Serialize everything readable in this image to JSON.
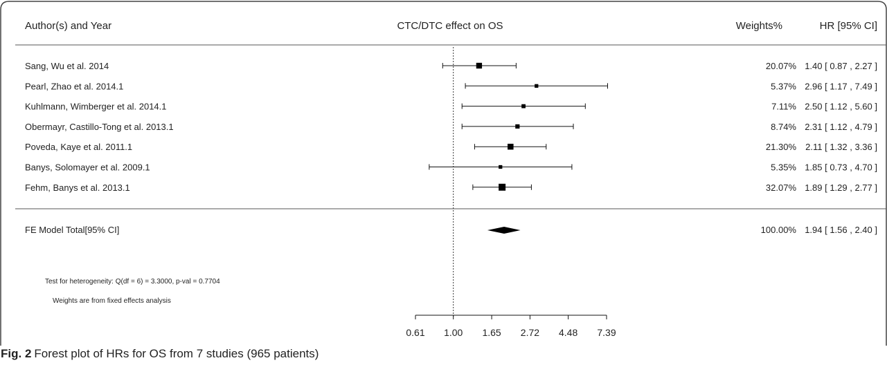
{
  "chart_data": {
    "type": "forest",
    "title": "CTC/DTC effect on OS",
    "columns": {
      "study": "Author(s) and Year",
      "weight": "Weights%",
      "estimate": "HR [95% CI]"
    },
    "studies": [
      {
        "label": "Sang, Wu et al. 2014",
        "weight": "20.07%",
        "hr_text": "1.40 [ 0.87 , 2.27 ]",
        "hr": 1.4,
        "lo": 0.87,
        "hi": 2.27,
        "w": 20.07
      },
      {
        "label": "Pearl, Zhao et al. 2014.1",
        "weight": "5.37%",
        "hr_text": "2.96 [ 1.17 , 7.49 ]",
        "hr": 2.96,
        "lo": 1.17,
        "hi": 7.49,
        "w": 5.37
      },
      {
        "label": "Kuhlmann, Wimberger et al. 2014.1",
        "weight": "7.11%",
        "hr_text": "2.50 [ 1.12 , 5.60 ]",
        "hr": 2.5,
        "lo": 1.12,
        "hi": 5.6,
        "w": 7.11
      },
      {
        "label": "Obermayr, Castillo-Tong et al. 2013.1",
        "weight": "8.74%",
        "hr_text": "2.31 [ 1.12 , 4.79 ]",
        "hr": 2.31,
        "lo": 1.12,
        "hi": 4.79,
        "w": 8.74
      },
      {
        "label": "Poveda, Kaye et al. 2011.1",
        "weight": "21.30%",
        "hr_text": "2.11 [ 1.32 , 3.36 ]",
        "hr": 2.11,
        "lo": 1.32,
        "hi": 3.36,
        "w": 21.3
      },
      {
        "label": "Banys, Solomayer et al. 2009.1",
        "weight": "5.35%",
        "hr_text": "1.85 [ 0.73 , 4.70 ]",
        "hr": 1.85,
        "lo": 0.73,
        "hi": 4.7,
        "w": 5.35
      },
      {
        "label": "Fehm, Banys et al. 2013.1",
        "weight": "32.07%",
        "hr_text": "1.89 [ 1.29 , 2.77 ]",
        "hr": 1.89,
        "lo": 1.29,
        "hi": 2.77,
        "w": 32.07
      }
    ],
    "summary": {
      "label": "FE Model Total[95% CI]",
      "weight": "100.00%",
      "hr_text": "1.94 [ 1.56 , 2.40 ]",
      "hr": 1.94,
      "lo": 1.56,
      "hi": 2.4
    },
    "notes": {
      "heterogeneity": "Test for heterogeneity: Q(df = 6) = 3.3000, p-val = 0.7704",
      "weights": "Weights are from fixed effects analysis"
    },
    "x_axis": {
      "scale": "log",
      "ticks": [
        0.61,
        1.0,
        1.65,
        2.72,
        4.48,
        7.39
      ],
      "tick_labels": [
        "0.61",
        "1.00",
        "1.65",
        "2.72",
        "4.48",
        "7.39"
      ],
      "reference": 1.0
    }
  },
  "caption": {
    "fig_label": "Fig. 2",
    "text": "Forest plot of HRs for OS from 7 studies (965 patients)"
  }
}
